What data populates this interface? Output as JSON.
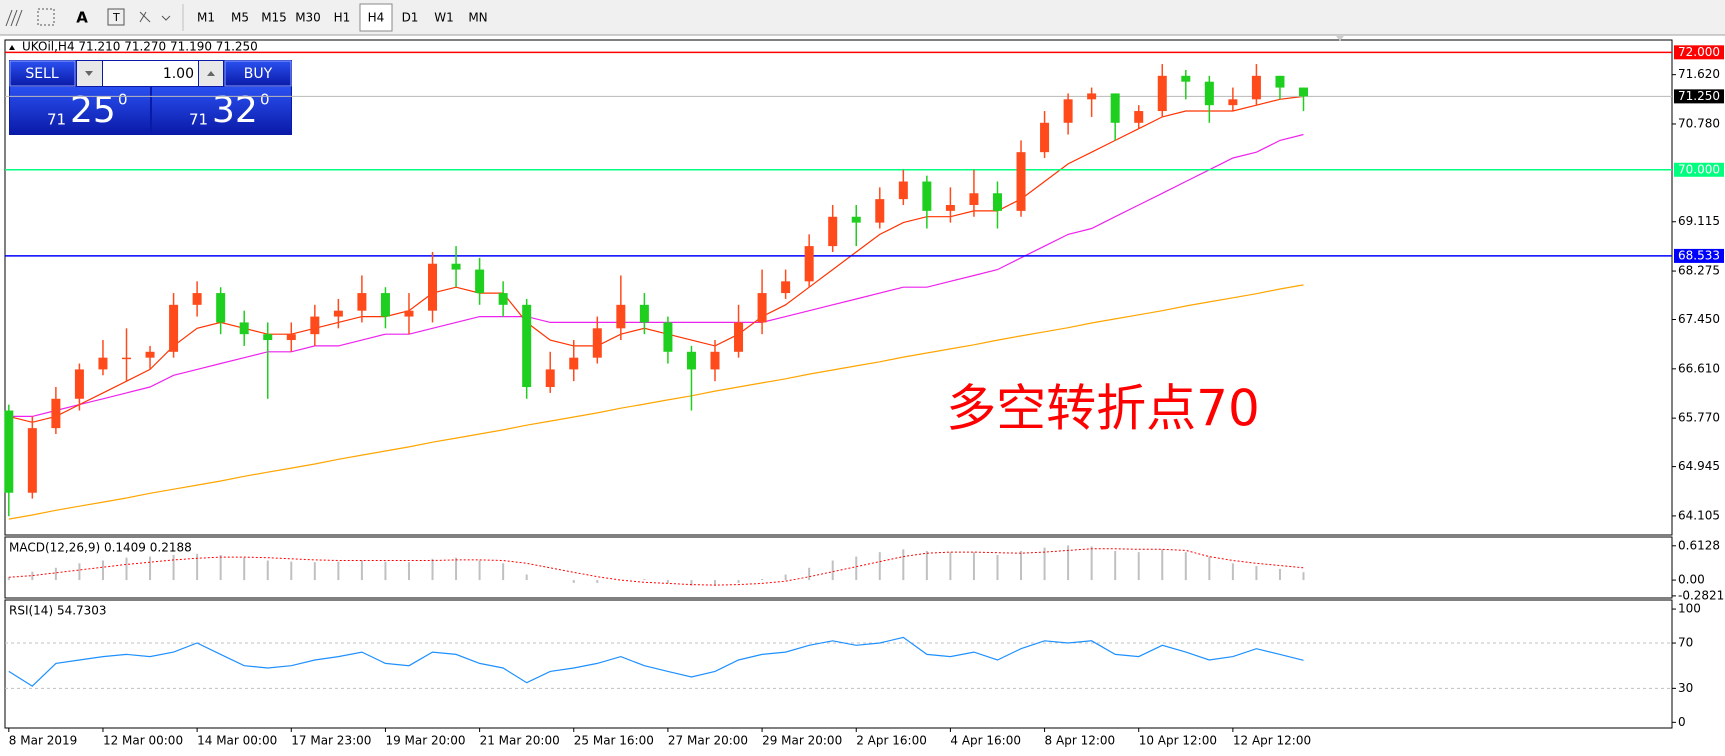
{
  "toolbar": {
    "font_tool": "A",
    "timeframes": [
      "M1",
      "M5",
      "M15",
      "M30",
      "H1",
      "H4",
      "D1",
      "W1",
      "MN"
    ],
    "active_index": 5
  },
  "trade_panel": {
    "sell": "SELL",
    "lot": "1.00",
    "buy": "BUY",
    "bid": {
      "prefix": "71",
      "big": "25",
      "sup": "0"
    },
    "ask": {
      "prefix": "71",
      "big": "32",
      "sup": "0"
    }
  },
  "chart_data": [
    {
      "type": "candlestick",
      "header": "UKOil,H4  71.210 71.270 71.190 71.250",
      "annotation": "多空转折点70",
      "up_color": "#ff4a1c",
      "down_color": "#1fcf1f",
      "ylim": [
        63.78,
        72.21
      ],
      "yticks": [
        {
          "value": 71.62,
          "label": "71.620"
        },
        {
          "value": 70.78,
          "label": "70.780"
        },
        {
          "value": 69.115,
          "label": "69.115"
        },
        {
          "value": 68.275,
          "label": "68.275"
        },
        {
          "value": 67.45,
          "label": "67.450"
        },
        {
          "value": 66.61,
          "label": "66.610"
        },
        {
          "value": 65.77,
          "label": "65.770"
        },
        {
          "value": 64.945,
          "label": "64.945"
        },
        {
          "value": 64.105,
          "label": "64.105"
        }
      ],
      "levels": [
        {
          "value": 72,
          "label": "72.000",
          "color": "#ff0000"
        },
        {
          "value": 70,
          "label": "70.000",
          "color": "#00ff7f"
        },
        {
          "value": 68.533,
          "label": "68.533",
          "color": "#0000ff"
        },
        {
          "value": 71.25,
          "label": "71.250",
          "color": "#b8b8b8"
        }
      ],
      "categories": [
        "8 Mar 2019",
        null,
        null,
        null,
        "12 Mar 00:00",
        null,
        null,
        null,
        "14 Mar 00:00",
        null,
        null,
        null,
        "17 Mar 23:00",
        null,
        null,
        null,
        "19 Mar 20:00",
        null,
        null,
        null,
        "21 Mar 20:00",
        null,
        null,
        null,
        "25 Mar 16:00",
        null,
        null,
        null,
        "27 Mar 20:00",
        null,
        null,
        null,
        "29 Mar 20:00",
        null,
        null,
        null,
        "2 Apr 16:00",
        null,
        null,
        null,
        "4 Apr 16:00",
        null,
        null,
        null,
        "8 Apr 12:00",
        null,
        null,
        null,
        "10 Apr 12:00",
        null,
        null,
        null,
        "12 Apr 12:00",
        null,
        null,
        null
      ],
      "open": [
        65.9,
        64.5,
        65.6,
        66.1,
        66.6,
        66.8,
        66.8,
        66.9,
        67.7,
        67.9,
        67.4,
        67.2,
        67.1,
        67.2,
        67.5,
        67.6,
        67.9,
        67.5,
        67.6,
        68.4,
        68.3,
        67.9,
        67.7,
        66.3,
        66.6,
        66.8,
        67.3,
        67.7,
        67.4,
        66.9,
        66.6,
        66.9,
        67.4,
        67.9,
        68.1,
        68.7,
        69.2,
        69.1,
        69.5,
        69.8,
        69.3,
        69.4,
        69.6,
        69.3,
        70.3,
        70.8,
        71.2,
        71.3,
        70.8,
        71.0,
        71.6,
        71.5,
        71.1,
        71.2,
        71.6,
        71.4
      ],
      "high": [
        66.0,
        65.8,
        66.3,
        66.7,
        67.1,
        67.3,
        67.0,
        67.9,
        68.1,
        68.0,
        67.6,
        67.4,
        67.4,
        67.7,
        67.8,
        68.2,
        68.0,
        67.9,
        68.6,
        68.7,
        68.5,
        68.1,
        67.8,
        66.9,
        67.1,
        67.5,
        68.2,
        67.9,
        67.5,
        67.0,
        67.1,
        67.7,
        68.3,
        68.3,
        68.9,
        69.4,
        69.4,
        69.7,
        70.0,
        69.9,
        69.7,
        70.0,
        69.8,
        70.5,
        71.0,
        71.3,
        71.4,
        71.3,
        71.1,
        71.8,
        71.7,
        71.6,
        71.4,
        71.8,
        71.6,
        71.4
      ],
      "low": [
        64.1,
        64.4,
        65.5,
        65.9,
        66.5,
        66.4,
        66.6,
        66.8,
        67.5,
        67.2,
        67.0,
        66.1,
        66.9,
        67.0,
        67.3,
        67.4,
        67.3,
        67.2,
        67.4,
        68.0,
        67.7,
        67.5,
        66.1,
        66.2,
        66.4,
        66.7,
        67.1,
        67.2,
        66.7,
        65.9,
        66.4,
        66.8,
        67.2,
        67.8,
        68.0,
        68.6,
        68.7,
        69.0,
        69.4,
        69.0,
        69.1,
        69.2,
        69.0,
        69.2,
        70.2,
        70.6,
        70.9,
        70.5,
        70.7,
        70.9,
        71.2,
        70.8,
        71.0,
        71.1,
        71.2,
        71.0
      ],
      "close": [
        64.5,
        65.6,
        66.1,
        66.6,
        66.8,
        66.8,
        66.9,
        67.7,
        67.9,
        67.4,
        67.2,
        67.1,
        67.2,
        67.5,
        67.6,
        67.9,
        67.5,
        67.6,
        68.4,
        68.3,
        67.9,
        67.7,
        66.3,
        66.6,
        66.8,
        67.3,
        67.7,
        67.4,
        66.9,
        66.6,
        66.9,
        67.4,
        67.9,
        68.1,
        68.7,
        69.2,
        69.1,
        69.5,
        69.8,
        69.3,
        69.4,
        69.6,
        69.3,
        70.3,
        70.8,
        71.2,
        71.3,
        70.8,
        71.0,
        71.6,
        71.5,
        71.1,
        71.2,
        71.6,
        71.4,
        71.25
      ],
      "moving_averages": [
        {
          "color": "#ff3300",
          "values": [
            65.8,
            65.7,
            65.8,
            66.0,
            66.2,
            66.4,
            66.6,
            67.0,
            67.3,
            67.4,
            67.3,
            67.2,
            67.2,
            67.3,
            67.4,
            67.5,
            67.5,
            67.6,
            67.9,
            68.0,
            67.9,
            67.9,
            67.4,
            67.1,
            67.0,
            67.0,
            67.2,
            67.3,
            67.2,
            67.1,
            67.0,
            67.2,
            67.5,
            67.7,
            68.0,
            68.3,
            68.6,
            68.9,
            69.1,
            69.2,
            69.2,
            69.3,
            69.3,
            69.5,
            69.8,
            70.1,
            70.3,
            70.5,
            70.7,
            70.9,
            71.0,
            71.0,
            71.0,
            71.1,
            71.2,
            71.25
          ]
        },
        {
          "color": "#ee22ee",
          "values": [
            65.8,
            65.8,
            65.9,
            66.0,
            66.1,
            66.2,
            66.3,
            66.5,
            66.6,
            66.7,
            66.8,
            66.9,
            66.9,
            67.0,
            67.0,
            67.1,
            67.2,
            67.2,
            67.3,
            67.4,
            67.5,
            67.5,
            67.5,
            67.4,
            67.4,
            67.4,
            67.4,
            67.4,
            67.4,
            67.4,
            67.4,
            67.4,
            67.4,
            67.5,
            67.6,
            67.7,
            67.8,
            67.9,
            68.0,
            68.0,
            68.1,
            68.2,
            68.3,
            68.5,
            68.7,
            68.9,
            69.0,
            69.2,
            69.4,
            69.6,
            69.8,
            70.0,
            70.2,
            70.3,
            70.5,
            70.6
          ]
        },
        {
          "color": "#ffa500",
          "values": [
            64.05,
            64.12,
            64.2,
            64.27,
            64.34,
            64.41,
            64.49,
            64.56,
            64.63,
            64.7,
            64.78,
            64.85,
            64.92,
            64.99,
            65.07,
            65.14,
            65.21,
            65.28,
            65.36,
            65.43,
            65.5,
            65.57,
            65.65,
            65.72,
            65.79,
            65.86,
            65.94,
            66.01,
            66.08,
            66.15,
            66.23,
            66.3,
            66.37,
            66.44,
            66.52,
            66.59,
            66.66,
            66.73,
            66.81,
            66.88,
            66.95,
            67.02,
            67.1,
            67.17,
            67.24,
            67.31,
            67.39,
            67.46,
            67.53,
            67.6,
            67.68,
            67.75,
            67.82,
            67.89,
            67.97,
            68.04
          ]
        }
      ]
    },
    {
      "type": "macd",
      "label": "MACD(12,26,9) 0.1409 0.2188",
      "hist_color": "#c0c0c0",
      "signal_color": "#ff0000",
      "ylim": [
        -0.32,
        0.77
      ],
      "yticks": [
        0.6128,
        {
          "value": 0,
          "label": "0.00"
        },
        -0.2821
      ],
      "histogram": [
        0.05,
        0.15,
        0.22,
        0.3,
        0.35,
        0.4,
        0.42,
        0.45,
        0.47,
        0.45,
        0.4,
        0.35,
        0.33,
        0.32,
        0.33,
        0.35,
        0.33,
        0.32,
        0.38,
        0.4,
        0.35,
        0.3,
        0.1,
        0.0,
        -0.05,
        -0.05,
        0.0,
        0.02,
        -0.05,
        -0.1,
        -0.1,
        -0.05,
        0.02,
        0.1,
        0.22,
        0.35,
        0.42,
        0.5,
        0.55,
        0.52,
        0.5,
        0.5,
        0.45,
        0.52,
        0.58,
        0.62,
        0.6,
        0.52,
        0.5,
        0.55,
        0.5,
        0.42,
        0.3,
        0.25,
        0.2,
        0.1409
      ],
      "signal": [
        0.05,
        0.08,
        0.13,
        0.18,
        0.23,
        0.28,
        0.32,
        0.36,
        0.39,
        0.41,
        0.41,
        0.4,
        0.38,
        0.36,
        0.35,
        0.35,
        0.35,
        0.35,
        0.35,
        0.36,
        0.36,
        0.35,
        0.3,
        0.22,
        0.14,
        0.06,
        0.0,
        -0.04,
        -0.06,
        -0.08,
        -0.09,
        -0.08,
        -0.06,
        -0.02,
        0.06,
        0.15,
        0.24,
        0.33,
        0.42,
        0.48,
        0.5,
        0.5,
        0.49,
        0.48,
        0.5,
        0.53,
        0.56,
        0.56,
        0.55,
        0.55,
        0.53,
        0.42,
        0.35,
        0.3,
        0.26,
        0.2188
      ]
    },
    {
      "type": "line",
      "label": "RSI(14) 54.7303",
      "color": "#1e90ff",
      "ylim": [
        -5,
        108
      ],
      "yticks": [
        100,
        70,
        30,
        0
      ],
      "levels": [
        70,
        30
      ],
      "values": [
        45,
        32,
        52,
        55,
        58,
        60,
        58,
        62,
        70,
        60,
        50,
        48,
        50,
        55,
        58,
        62,
        52,
        50,
        62,
        60,
        52,
        48,
        35,
        45,
        48,
        52,
        58,
        50,
        45,
        40,
        45,
        55,
        60,
        62,
        68,
        72,
        68,
        70,
        75,
        60,
        58,
        62,
        55,
        65,
        72,
        70,
        72,
        60,
        58,
        68,
        62,
        55,
        58,
        65,
        60,
        54.7303
      ]
    }
  ]
}
